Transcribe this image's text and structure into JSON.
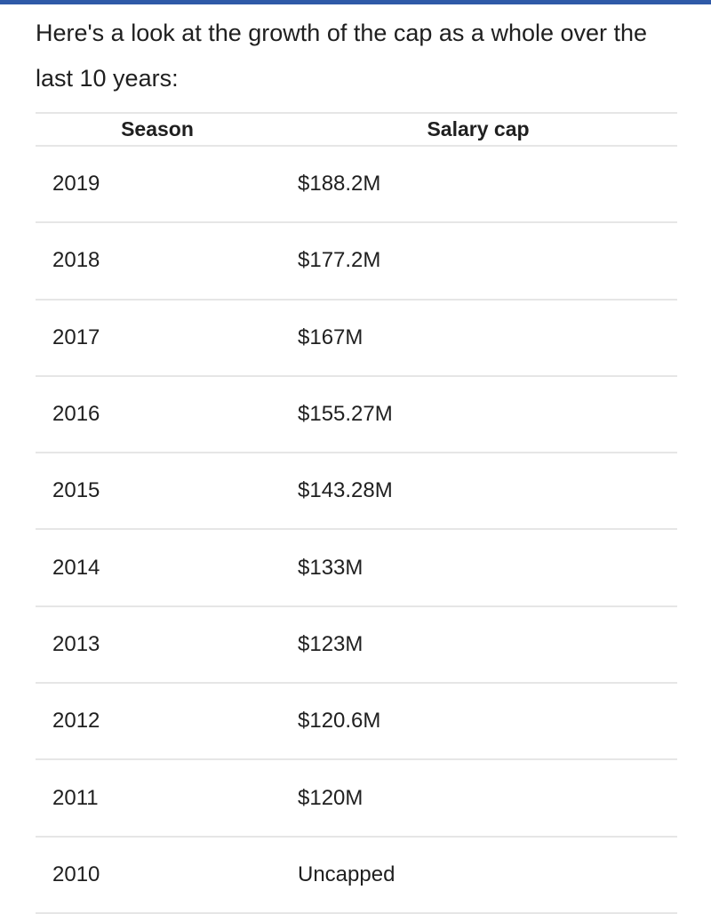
{
  "article": {
    "intro_text": "Here's a look at the growth of the cap as a whole over the last 10 years:"
  },
  "table": {
    "headers": {
      "season": "Season",
      "salary_cap": "Salary cap"
    },
    "rows": [
      {
        "season": "2019",
        "salary_cap": "$188.2M"
      },
      {
        "season": "2018",
        "salary_cap": "$177.2M"
      },
      {
        "season": "2017",
        "salary_cap": "$167M"
      },
      {
        "season": "2016",
        "salary_cap": "$155.27M"
      },
      {
        "season": "2015",
        "salary_cap": "$143.28M"
      },
      {
        "season": "2014",
        "salary_cap": "$133M"
      },
      {
        "season": "2013",
        "salary_cap": "$123M"
      },
      {
        "season": "2012",
        "salary_cap": "$120.6M"
      },
      {
        "season": "2011",
        "salary_cap": "$120M"
      },
      {
        "season": "2010",
        "salary_cap": "Uncapped"
      }
    ]
  },
  "colors": {
    "accent_bar": "#2f5aa8",
    "divider": "#e6e6e6",
    "text": "#1f1f1f"
  }
}
